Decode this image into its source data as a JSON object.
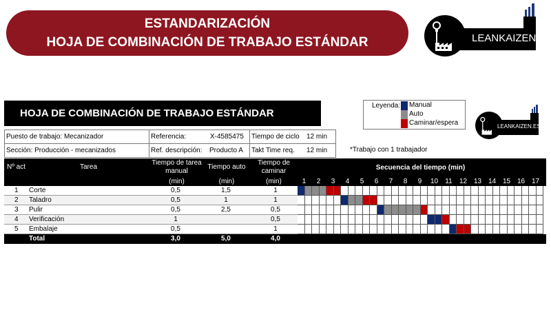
{
  "banner": {
    "line1": "ESTANDARIZACIÓN",
    "line2": "HOJA DE COMBINACIÓN DE TRABAJO ESTÁNDAR"
  },
  "logo": {
    "text": "LEANKAIZEN.ES"
  },
  "sheet": {
    "title": "HOJA DE COMBINACIÓN DE TRABAJO ESTÁNDAR",
    "puesto": "Puesto de trabajo: Mecanizador",
    "seccion": "Sección: Producción - mecanizados",
    "referencia_label": "Referencia:",
    "referencia_value": "X-4585475",
    "refdesc_label": "Ref. descripción:",
    "refdesc_value": "Producto A",
    "ciclo_label": "Tiempo de ciclo",
    "ciclo_value": "12 min",
    "takt_label": "Takt Time req.",
    "takt_value": "12 min",
    "note": "*Trabajo con 1 trabajador"
  },
  "legend": {
    "label": "Leyenda:",
    "items": [
      {
        "name": "Manual",
        "color": "#0e2a6e"
      },
      {
        "name": "Auto",
        "color": "#8c8c8c"
      },
      {
        "name": "Caminar/espera",
        "color": "#c00000"
      }
    ]
  },
  "table": {
    "headers": {
      "num": "Nº act",
      "tarea": "Tarea",
      "manual_l1": "Tiempo de tarea",
      "manual_l2": "manual",
      "manual_l3": "(min)",
      "auto_l1": "Tiempo auto",
      "auto_l3": "(min)",
      "walk_l1": "Tiempo de",
      "walk_l2": "caminar",
      "walk_l3": "(min)",
      "sequence": "Secuencia del tiempo (min)"
    },
    "rows": [
      {
        "num": "1",
        "tarea": "Corte",
        "manual": "0,5",
        "auto": "1,5",
        "walk": "1"
      },
      {
        "num": "2",
        "tarea": "Taladro",
        "manual": "0,5",
        "auto": "1",
        "walk": "1"
      },
      {
        "num": "3",
        "tarea": "Pulir",
        "manual": "0,5",
        "auto": "2,5",
        "walk": "0,5"
      },
      {
        "num": "4",
        "tarea": "Verificación",
        "manual": "1",
        "auto": "",
        "walk": "0,5"
      },
      {
        "num": "5",
        "tarea": "Embalaje",
        "manual": "0,5",
        "auto": "",
        "walk": "1"
      }
    ],
    "total": {
      "label": "Total",
      "manual": "3,0",
      "auto": "5,0",
      "walk": "4,0"
    }
  },
  "gantt": {
    "minutes": [
      "1",
      "2",
      "3",
      "4",
      "5",
      "6",
      "7",
      "8",
      "9",
      "10",
      "11",
      "12",
      "13",
      "14",
      "15",
      "16",
      "17"
    ],
    "half_cells": 34,
    "segments": [
      [
        {
          "type": "manual",
          "start": 0,
          "len": 1
        },
        {
          "type": "auto",
          "start": 1,
          "len": 3
        },
        {
          "type": "walk",
          "start": 4,
          "len": 2
        }
      ],
      [
        {
          "type": "manual",
          "start": 6,
          "len": 1
        },
        {
          "type": "auto",
          "start": 7,
          "len": 2
        },
        {
          "type": "walk",
          "start": 9,
          "len": 2
        }
      ],
      [
        {
          "type": "manual",
          "start": 11,
          "len": 1
        },
        {
          "type": "auto",
          "start": 12,
          "len": 5
        },
        {
          "type": "walk",
          "start": 17,
          "len": 1
        }
      ],
      [
        {
          "type": "manual",
          "start": 18,
          "len": 2
        },
        {
          "type": "walk",
          "start": 20,
          "len": 1
        }
      ],
      [
        {
          "type": "manual",
          "start": 21,
          "len": 1
        },
        {
          "type": "walk",
          "start": 22,
          "len": 2
        }
      ]
    ],
    "colors": {
      "manual": "#0e2a6e",
      "auto": "#8c8c8c",
      "walk": "#c00000"
    }
  }
}
